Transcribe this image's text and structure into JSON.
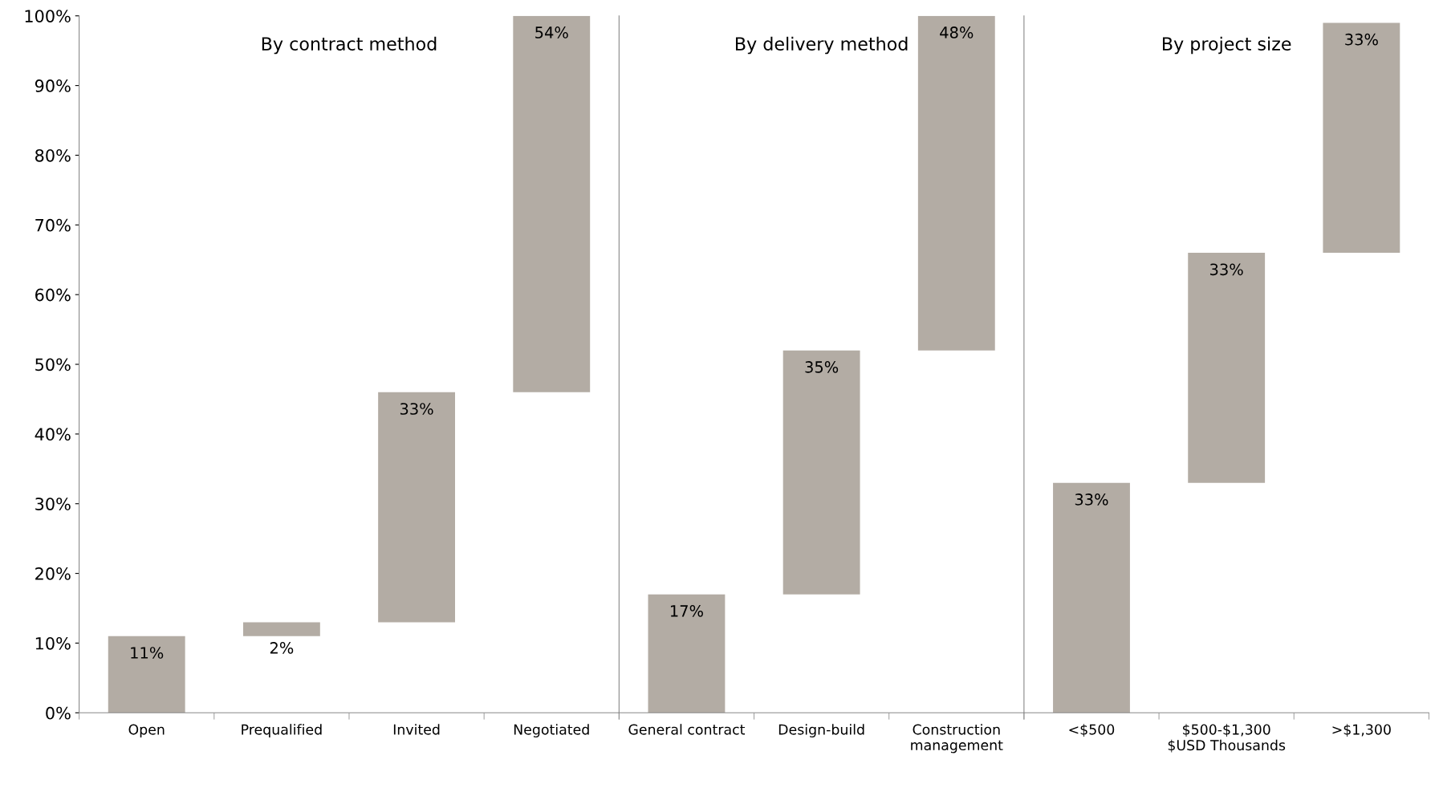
{
  "chart_data": [
    {
      "type": "bar",
      "title": "By contract method",
      "categories": [
        "Open",
        "Prequalified",
        "Invited",
        "Negotiated"
      ],
      "values": [
        11,
        2,
        33,
        54
      ],
      "base": [
        0,
        11,
        13,
        46
      ],
      "value_labels": [
        "11%",
        "2%",
        "33%",
        "54%"
      ],
      "color": "#b3aca4",
      "ylim": [
        0,
        100
      ],
      "yticks": [
        {
          "value": 0,
          "label": "0%"
        },
        {
          "value": 10,
          "label": "10%"
        },
        {
          "value": 20,
          "label": "20%"
        },
        {
          "value": 30,
          "label": "30%"
        },
        {
          "value": 40,
          "label": "40%"
        },
        {
          "value": 50,
          "label": "50%"
        },
        {
          "value": 60,
          "label": "60%"
        },
        {
          "value": 70,
          "label": "70%"
        },
        {
          "value": 80,
          "label": "80%"
        },
        {
          "value": 90,
          "label": "90%"
        },
        {
          "value": 100,
          "label": "100%"
        }
      ],
      "grid": false
    },
    {
      "type": "bar",
      "title": "By delivery method",
      "categories": [
        "General contract",
        "Design-build",
        "Construction\nmanagement"
      ],
      "values": [
        17,
        35,
        48
      ],
      "base": [
        0,
        17,
        52
      ],
      "value_labels": [
        "17%",
        "35%",
        "48%"
      ],
      "color": "#b3aca4",
      "ylim": [
        0,
        100
      ],
      "tick_labels": "x",
      "grid": false
    },
    {
      "type": "bar",
      "title": "By project size",
      "xlabel": "$USD Thousands",
      "categories": [
        "<$500",
        "$500-$1,300",
        ">$1,300"
      ],
      "values": [
        33,
        33,
        33
      ],
      "base": [
        0,
        33,
        66
      ],
      "value_labels": [
        "33%",
        "33%",
        "33%"
      ],
      "color": "#b3aca4",
      "ylim": [
        0,
        100
      ],
      "tick_labels": "x",
      "grid": false
    }
  ]
}
